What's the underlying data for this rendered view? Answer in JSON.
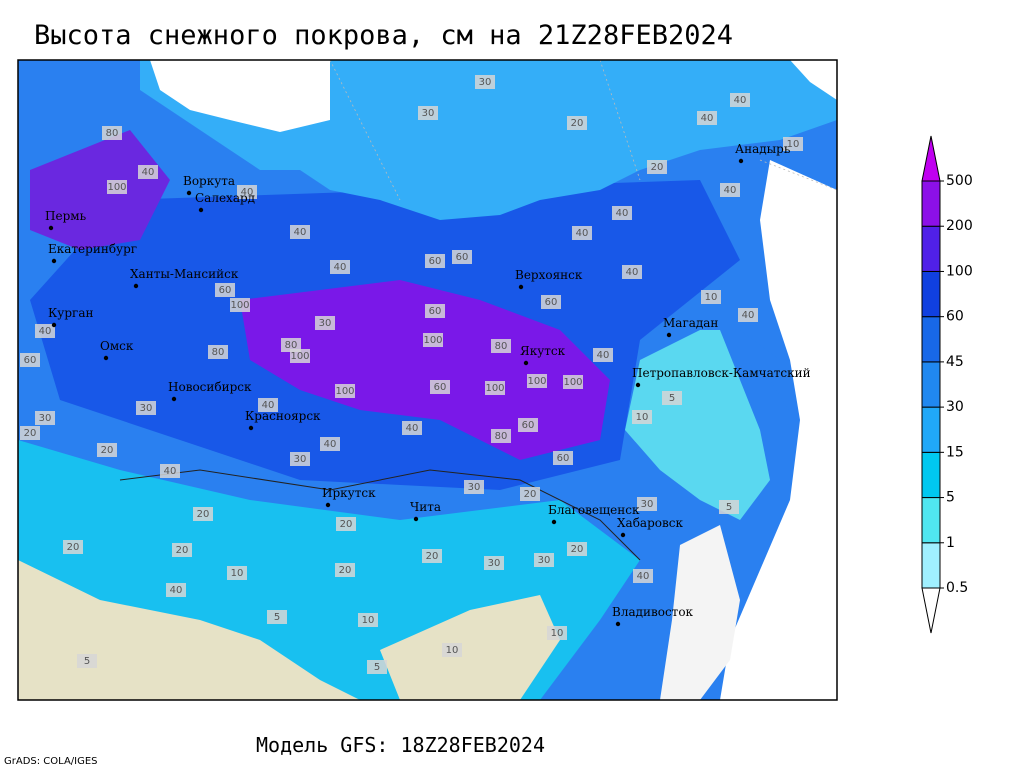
{
  "header": {
    "title": "Высота снежного покрова, см на 21Z28FEB2024"
  },
  "map": {
    "cities": [
      "Воркута",
      "Салехард",
      "Пермь",
      "Екатеринбург",
      "Ханты-Мансийск",
      "Курган",
      "Омск",
      "Новосибирск",
      "Красноярск",
      "Иркутск",
      "Чита",
      "Верхоянск",
      "Якутск",
      "Магадан",
      "Анадырь",
      "Петропавловск-Камчатский",
      "Благовещенск",
      "Хабаровск",
      "Владивосток"
    ],
    "contour_labels": [
      30,
      20,
      30,
      40,
      100,
      80,
      40,
      40,
      40,
      60,
      60,
      40,
      40,
      60,
      40,
      10,
      40,
      30,
      60,
      100,
      80,
      100,
      100,
      80,
      100,
      100,
      60,
      100,
      40,
      40,
      60,
      80,
      40,
      30,
      40,
      20,
      30,
      20,
      60,
      40,
      60,
      100,
      80,
      30,
      20,
      20,
      30,
      20,
      40,
      30,
      20,
      10,
      5,
      5,
      5,
      10,
      10,
      10,
      20,
      20,
      40,
      30,
      20,
      10,
      5,
      5,
      10,
      20,
      40,
      40,
      40,
      60,
      40,
      30,
      20
    ]
  },
  "colorbar": {
    "levels": [
      0.5,
      1,
      5,
      15,
      30,
      45,
      60,
      100,
      200,
      500
    ],
    "colors": [
      "#ffffff",
      "#a0f0ff",
      "#50e6f0",
      "#00c8f0",
      "#20a8f8",
      "#2088f0",
      "#1868e8",
      "#1040e0",
      "#5020e8",
      "#8c10e8",
      "#c000f0"
    ]
  },
  "footer": {
    "model": "Модель GFS: 18Z28FEB2024",
    "credit": "GrADS: COLA/IGES"
  }
}
